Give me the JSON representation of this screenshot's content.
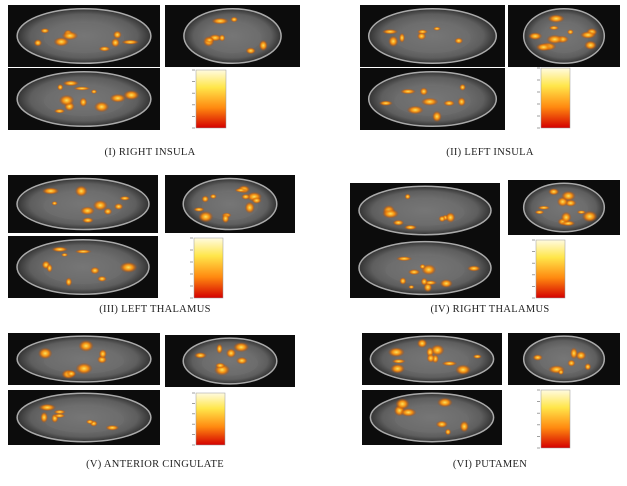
{
  "panels": [
    {
      "caption": "(I) RIGHT INSULA"
    },
    {
      "caption": "(II) LEFT INSULA"
    },
    {
      "caption": "(III) LEFT THALAMUS"
    },
    {
      "caption": "(IV) RIGHT THALAMUS"
    },
    {
      "caption": "(V) ANTERIOR CINGULATE"
    },
    {
      "caption": "(VI) PUTAMEN"
    }
  ]
}
